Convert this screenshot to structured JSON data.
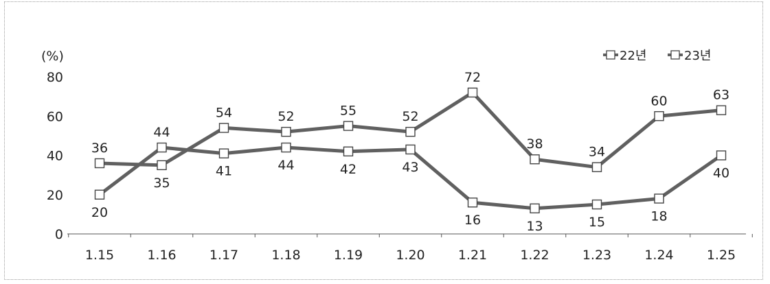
{
  "chart_data": {
    "type": "line",
    "ylabel": "(%)",
    "categories": [
      "1.15",
      "1.16",
      "1.17",
      "1.18",
      "1.19",
      "1.20",
      "1.21",
      "1.22",
      "1.23",
      "1.24",
      "1.25"
    ],
    "ylim": [
      0,
      80
    ],
    "yticks": [
      0,
      20,
      40,
      60,
      80
    ],
    "legend_position": "top-right",
    "series": [
      {
        "name": "22년",
        "values": [
          36,
          35,
          54,
          52,
          55,
          52,
          72,
          38,
          34,
          60,
          63
        ]
      },
      {
        "name": "23년",
        "values": [
          20,
          44,
          41,
          44,
          42,
          43,
          16,
          13,
          15,
          18,
          40
        ]
      }
    ],
    "line_color": "#606060",
    "marker_fill": "#ffffff"
  }
}
